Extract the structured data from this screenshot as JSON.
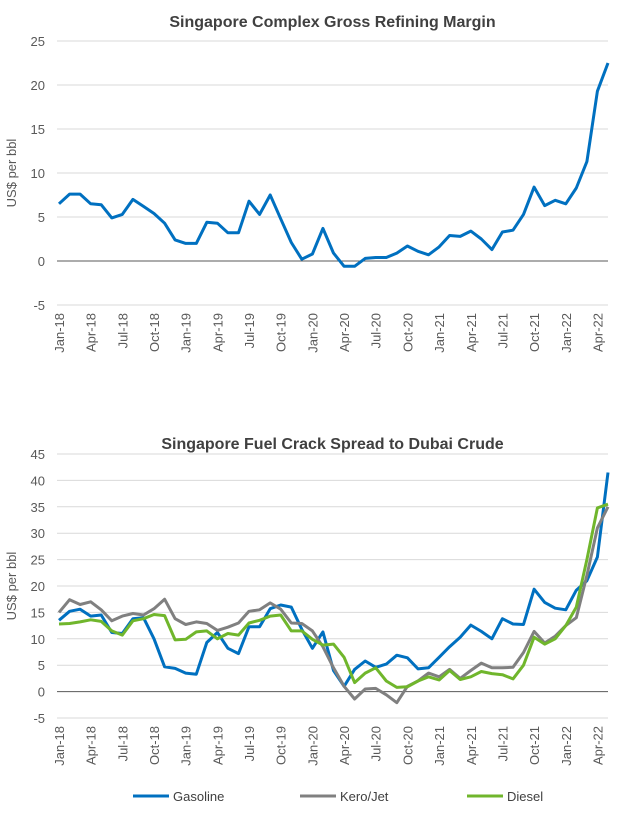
{
  "chart_data": [
    {
      "type": "line",
      "title": "Singapore Complex Gross Refining Margin",
      "xlabel": "",
      "ylabel": "US$ per bbl",
      "ylim": [
        -5,
        25
      ],
      "yticks": [
        -5,
        0,
        5,
        10,
        15,
        20,
        25
      ],
      "grid": true,
      "x_tick_labels": [
        "Jan-18",
        "Apr-18",
        "Jul-18",
        "Oct-18",
        "Jan-19",
        "Apr-19",
        "Jul-19",
        "Oct-19",
        "Jan-20",
        "Apr-20",
        "Jul-20",
        "Oct-20",
        "Jan-21",
        "Apr-21",
        "Jul-21",
        "Oct-21",
        "Jan-22",
        "Apr-22"
      ],
      "x_start": "Jan-18",
      "x_frequency": "monthly",
      "series": [
        {
          "name": "Gross Refining Margin",
          "color": "#0070c0",
          "values": [
            6.5,
            7.6,
            7.6,
            6.5,
            6.4,
            4.9,
            5.3,
            7.0,
            6.2,
            5.4,
            4.3,
            2.4,
            2.0,
            2.0,
            4.4,
            4.3,
            3.2,
            3.2,
            6.8,
            5.3,
            7.5,
            4.8,
            2.1,
            0.2,
            0.8,
            3.7,
            0.9,
            -0.6,
            -0.6,
            0.3,
            0.4,
            0.4,
            0.9,
            1.7,
            1.1,
            0.7,
            1.6,
            2.9,
            2.8,
            3.4,
            2.5,
            1.3,
            3.3,
            3.5,
            5.3,
            8.4,
            6.3,
            6.9,
            6.5,
            8.3,
            11.3,
            19.3,
            22.5
          ]
        }
      ]
    },
    {
      "type": "line",
      "title": "Singapore Fuel Crack Spread to Dubai Crude",
      "xlabel": "",
      "ylabel": "US$ per bbl",
      "ylim": [
        -5,
        45
      ],
      "yticks": [
        -5,
        0,
        5,
        10,
        15,
        20,
        25,
        30,
        35,
        40,
        45
      ],
      "grid": true,
      "legend": "bottom",
      "x_tick_labels": [
        "Jan-18",
        "Apr-18",
        "Jul-18",
        "Oct-18",
        "Jan-19",
        "Apr-19",
        "Jul-19",
        "Oct-19",
        "Jan-20",
        "Apr-20",
        "Jul-20",
        "Oct-20",
        "Jan-21",
        "Apr-21",
        "Jul-21",
        "Oct-21",
        "Jan-22",
        "Apr-22"
      ],
      "x_start": "Jan-18",
      "x_frequency": "monthly",
      "series": [
        {
          "name": "Gasoline",
          "color": "#0070c0",
          "values": [
            13.5,
            15.2,
            15.6,
            14.3,
            14.5,
            11.2,
            11.0,
            13.8,
            14.0,
            10.0,
            4.7,
            4.4,
            3.5,
            3.3,
            9.3,
            11.2,
            8.2,
            7.2,
            12.3,
            12.3,
            15.7,
            16.4,
            16.0,
            11.8,
            8.2,
            11.3,
            4.0,
            1.0,
            4.2,
            5.8,
            4.6,
            5.2,
            6.9,
            6.4,
            4.3,
            4.5,
            6.5,
            8.5,
            10.3,
            12.6,
            11.4,
            10.0,
            13.8,
            12.8,
            12.7,
            19.4,
            16.9,
            15.8,
            15.5,
            19.2,
            21.0,
            25.5,
            41.5
          ]
        },
        {
          "name": "Kero/Jet",
          "color": "#808080",
          "values": [
            15.0,
            17.4,
            16.5,
            17.0,
            15.5,
            13.4,
            14.3,
            14.8,
            14.5,
            15.7,
            17.5,
            13.8,
            12.7,
            13.2,
            12.9,
            11.6,
            12.2,
            13.0,
            15.2,
            15.5,
            16.8,
            15.6,
            13.0,
            12.9,
            11.5,
            8.5,
            4.5,
            1.0,
            -1.4,
            0.5,
            0.6,
            -0.6,
            -2.1,
            1.0,
            2.0,
            3.5,
            2.8,
            4.2,
            2.5,
            4.0,
            5.4,
            4.5,
            4.5,
            4.6,
            7.4,
            11.4,
            9.2,
            10.5,
            12.5,
            14.0,
            22.0,
            31.0,
            35.0
          ]
        },
        {
          "name": "Diesel",
          "color": "#70b62c",
          "values": [
            12.8,
            12.9,
            13.2,
            13.6,
            13.3,
            11.5,
            10.7,
            13.4,
            13.8,
            14.6,
            14.4,
            9.8,
            9.9,
            11.3,
            11.5,
            10.0,
            11.0,
            10.7,
            13.0,
            13.5,
            14.3,
            14.5,
            11.5,
            11.5,
            9.9,
            8.8,
            9.0,
            6.5,
            1.7,
            3.5,
            4.5,
            2.0,
            0.8,
            0.9,
            2.0,
            2.8,
            2.2,
            4.0,
            2.3,
            2.8,
            3.8,
            3.4,
            3.2,
            2.4,
            5.0,
            10.3,
            9.0,
            10.0,
            12.5,
            16.0,
            25.0,
            34.8,
            35.5
          ]
        }
      ]
    }
  ]
}
